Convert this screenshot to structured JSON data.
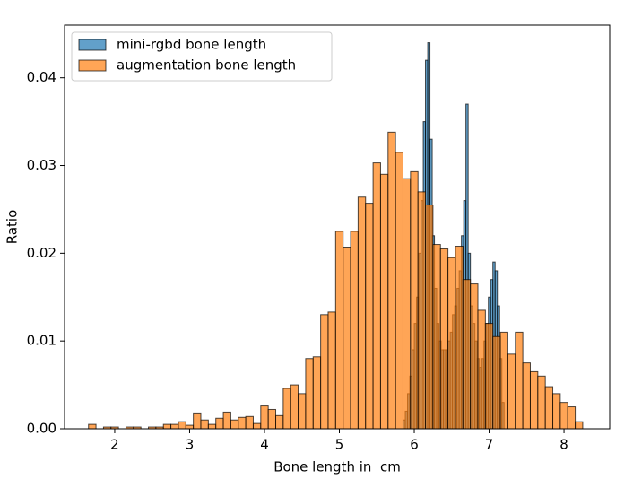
{
  "chart_data": {
    "type": "histogram",
    "xlabel": "Bone length in  cm",
    "ylabel": "Ratio",
    "xlim": [
      1.33,
      8.61
    ],
    "ylim": [
      0,
      0.046
    ],
    "xticks": [
      2,
      3,
      4,
      5,
      6,
      7,
      8
    ],
    "yticks": [
      {
        "value": 0,
        "label": "0.00"
      },
      {
        "value": 0.01,
        "label": "0.01"
      },
      {
        "value": 0.02,
        "label": "0.02"
      },
      {
        "value": 0.03,
        "label": "0.03"
      },
      {
        "value": 0.04,
        "label": "0.04"
      }
    ],
    "legend": "upper left",
    "alpha": 0.7,
    "edgecolor": "#000000",
    "series": [
      {
        "name": "mini-rgbd bone length",
        "color": "#1f77b4",
        "bins": [
          5.85,
          5.88,
          5.91,
          5.94,
          5.97,
          6.0,
          6.03,
          6.06,
          6.09,
          6.12,
          6.15,
          6.18,
          6.21,
          6.24,
          6.27,
          6.3,
          6.33,
          6.36,
          6.39,
          6.42,
          6.45,
          6.48,
          6.51,
          6.54,
          6.57,
          6.6,
          6.63,
          6.66,
          6.69,
          6.72,
          6.75,
          6.78,
          6.81,
          6.84,
          6.87,
          6.9,
          6.93,
          6.96,
          6.99,
          7.02,
          7.05,
          7.08,
          7.11,
          7.14,
          7.17,
          7.2
        ],
        "values": [
          0.001,
          0.002,
          0.004,
          0.006,
          0.009,
          0.012,
          0.015,
          0.02,
          0.026,
          0.035,
          0.042,
          0.044,
          0.033,
          0.022,
          0.016,
          0.012,
          0.01,
          0.009,
          0.009,
          0.009,
          0.01,
          0.011,
          0.013,
          0.014,
          0.016,
          0.018,
          0.022,
          0.026,
          0.037,
          0.02,
          0.014,
          0.012,
          0.01,
          0.008,
          0.007,
          0.008,
          0.01,
          0.012,
          0.015,
          0.017,
          0.019,
          0.018,
          0.014,
          0.008,
          0.003
        ]
      },
      {
        "name": "augmentation bone length",
        "color": "#ff7f0e",
        "bins": [
          1.65,
          1.75,
          1.85,
          1.95,
          2.05,
          2.15,
          2.25,
          2.35,
          2.45,
          2.55,
          2.65,
          2.75,
          2.85,
          2.95,
          3.05,
          3.15,
          3.25,
          3.35,
          3.45,
          3.55,
          3.65,
          3.75,
          3.85,
          3.95,
          4.05,
          4.15,
          4.25,
          4.35,
          4.45,
          4.55,
          4.65,
          4.75,
          4.85,
          4.95,
          5.05,
          5.15,
          5.25,
          5.35,
          5.45,
          5.55,
          5.65,
          5.75,
          5.85,
          5.95,
          6.05,
          6.15,
          6.25,
          6.35,
          6.45,
          6.55,
          6.65,
          6.75,
          6.85,
          6.95,
          7.05,
          7.15,
          7.25,
          7.35,
          7.45,
          7.55,
          7.65,
          7.75,
          7.85,
          7.95,
          8.05,
          8.15,
          8.25
        ],
        "values": [
          0.0005,
          0,
          0.0002,
          0.0002,
          0,
          0.0002,
          0.0002,
          0,
          0.0002,
          0.0002,
          0.0005,
          0.0005,
          0.0008,
          0.0004,
          0.0018,
          0.001,
          0.0005,
          0.0012,
          0.0019,
          0.001,
          0.0013,
          0.0014,
          0.0006,
          0.0026,
          0.0022,
          0.0015,
          0.0046,
          0.005,
          0.004,
          0.008,
          0.0082,
          0.013,
          0.0133,
          0.0225,
          0.0207,
          0.0225,
          0.0264,
          0.0257,
          0.0303,
          0.029,
          0.0338,
          0.0315,
          0.0285,
          0.0293,
          0.027,
          0.0255,
          0.021,
          0.0205,
          0.0195,
          0.0208,
          0.017,
          0.0165,
          0.0135,
          0.012,
          0.0105,
          0.011,
          0.0085,
          0.011,
          0.0075,
          0.0065,
          0.006,
          0.0048,
          0.004,
          0.003,
          0.0025,
          0.0008
        ]
      }
    ]
  }
}
